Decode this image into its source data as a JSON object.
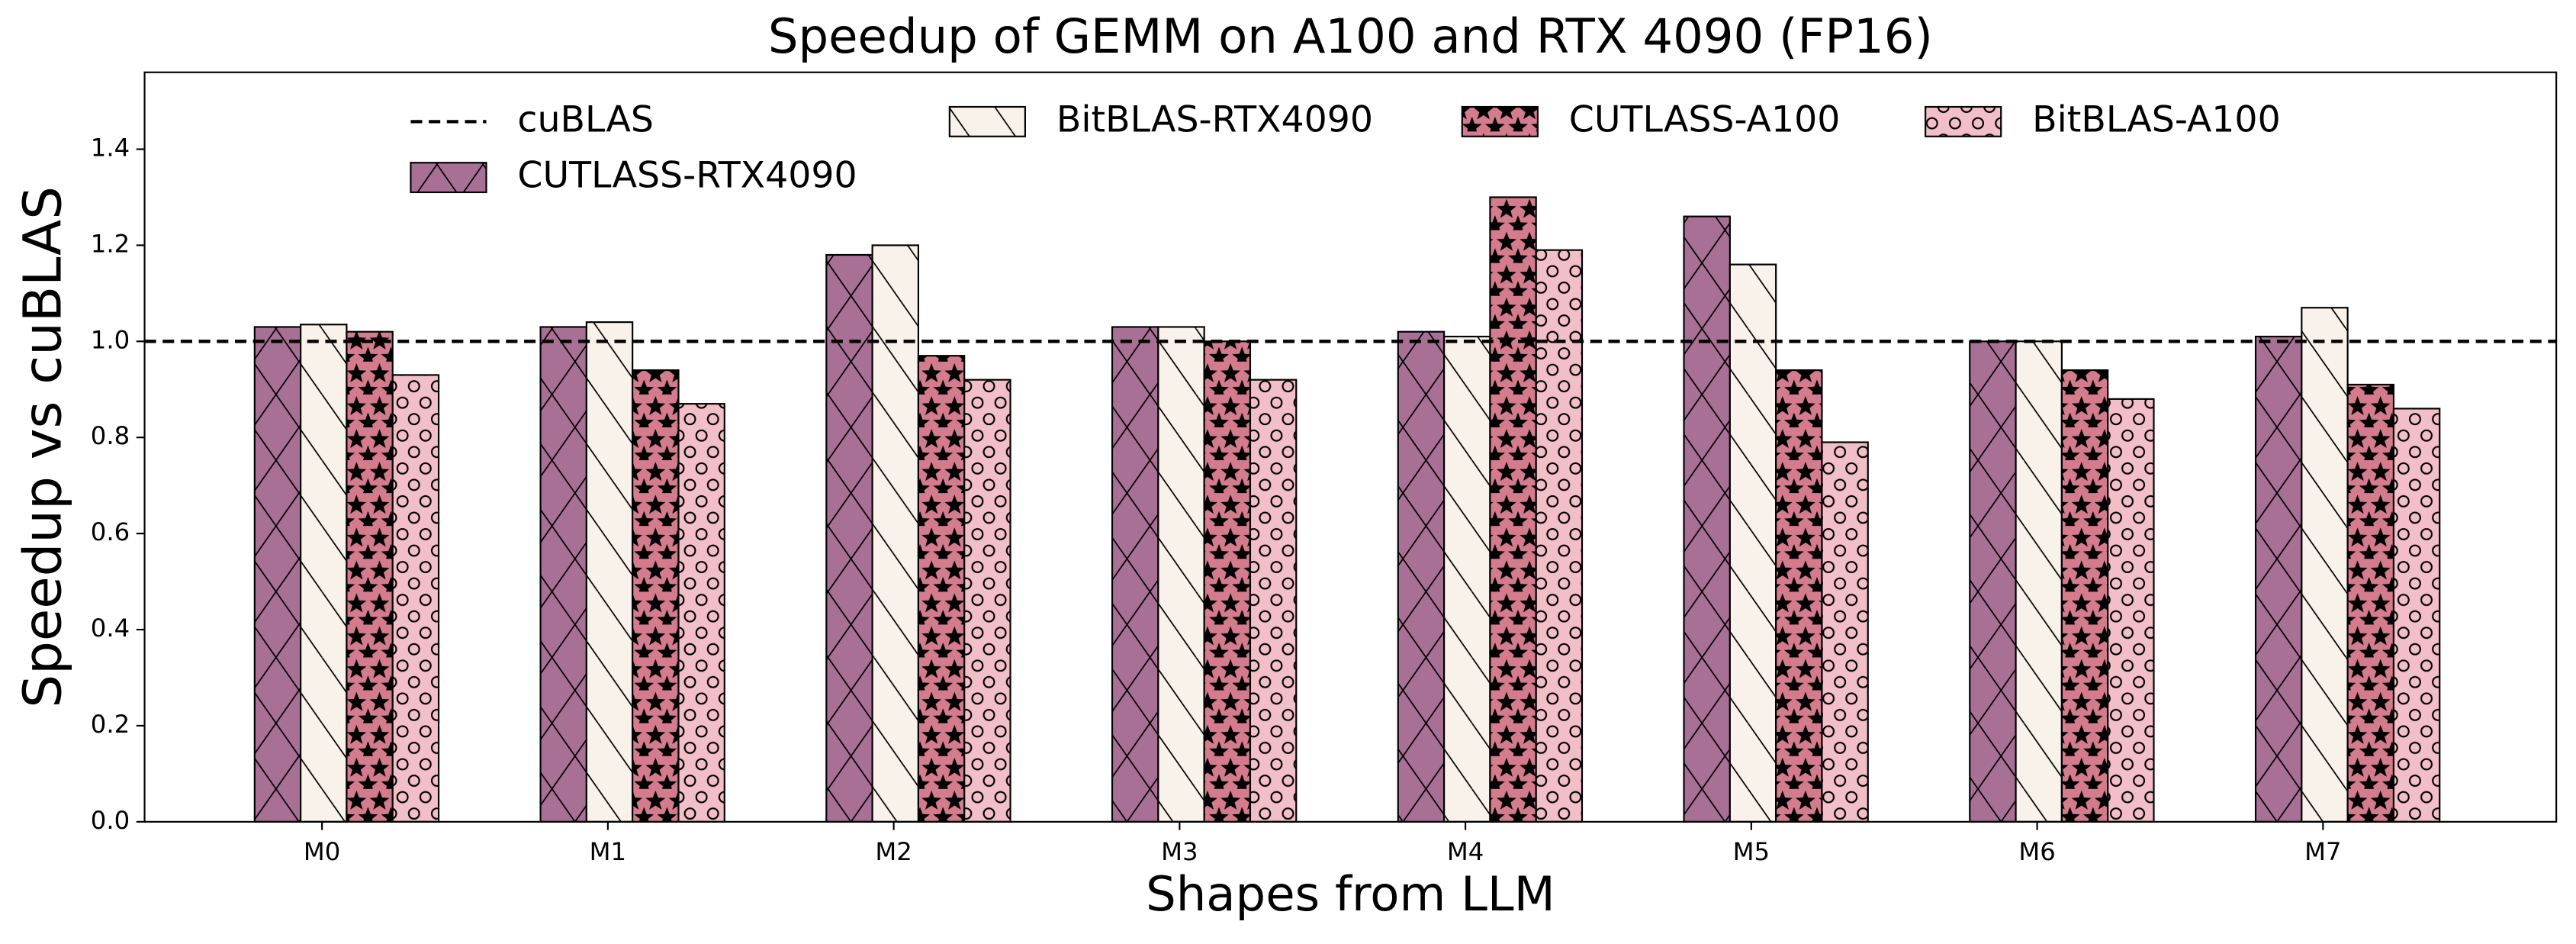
{
  "chart_data": {
    "type": "bar",
    "title": "Speedup of GEMM on A100 and RTX 4090 (FP16)",
    "x_label": "Shapes from LLM",
    "y_label": "Speedup vs cuBLAS",
    "categories": [
      "M0",
      "M1",
      "M2",
      "M3",
      "M4",
      "M5",
      "M6",
      "M7"
    ],
    "reference_line": {
      "name": "cuBLAS",
      "value": 1.0
    },
    "series": [
      {
        "name": "CUTLASS-RTX4090",
        "color": "#a87095",
        "values": [
          1.03,
          1.03,
          1.18,
          1.03,
          1.02,
          1.26,
          1.0,
          1.01
        ]
      },
      {
        "name": "BitBLAS-RTX4090",
        "color": "#f8f2ea",
        "values": [
          1.035,
          1.04,
          1.2,
          1.03,
          1.01,
          1.16,
          1.0,
          1.07
        ]
      },
      {
        "name": "CUTLASS-A100",
        "color": "#d47b8e",
        "values": [
          1.02,
          0.94,
          0.97,
          1.0,
          1.3,
          0.94,
          0.94,
          0.91
        ]
      },
      {
        "name": "BitBLAS-A100",
        "color": "#f2bfc8",
        "values": [
          0.93,
          0.87,
          0.92,
          0.92,
          1.19,
          0.79,
          0.88,
          0.86
        ]
      }
    ],
    "ylim": [
      0,
      1.56
    ],
    "yticks": [
      {
        "value": 0,
        "label": "0.0"
      },
      {
        "value": 0.2,
        "label": "0.2"
      },
      {
        "value": 0.4,
        "label": "0.4"
      },
      {
        "value": 0.6,
        "label": "0.6"
      },
      {
        "value": 0.8,
        "label": "0.8"
      },
      {
        "value": 1.0,
        "label": "1.0"
      },
      {
        "value": 1.2,
        "label": "1.2"
      },
      {
        "value": 1.4,
        "label": "1.4"
      }
    ],
    "grid": false,
    "legend": "top"
  }
}
